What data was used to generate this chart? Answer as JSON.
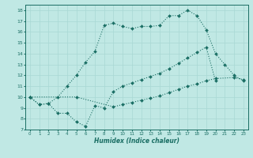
{
  "xlabel": "Humidex (Indice chaleur)",
  "bg_color": "#c0e8e4",
  "line_color": "#1a6e64",
  "grid_color": "#a8d8d4",
  "xlim": [
    -0.5,
    23.5
  ],
  "ylim": [
    7,
    18.5
  ],
  "yticks": [
    7,
    8,
    9,
    10,
    11,
    12,
    13,
    14,
    15,
    16,
    17,
    18
  ],
  "xticks": [
    0,
    1,
    2,
    3,
    4,
    5,
    6,
    7,
    8,
    9,
    10,
    11,
    12,
    13,
    14,
    15,
    16,
    17,
    18,
    19,
    20,
    21,
    22,
    23
  ],
  "line1_x": [
    0,
    1,
    2,
    3,
    4,
    5,
    6,
    7,
    8,
    9,
    10,
    11,
    12,
    13,
    14,
    15,
    16,
    17,
    18,
    19,
    20,
    21,
    22,
    23
  ],
  "line1_y": [
    10.0,
    9.3,
    9.4,
    10.0,
    11.0,
    12.0,
    13.2,
    14.2,
    16.6,
    16.8,
    16.5,
    16.3,
    16.5,
    16.5,
    16.6,
    17.5,
    17.5,
    18.0,
    17.5,
    16.2,
    14.0,
    13.0,
    12.0,
    11.5
  ],
  "line2_x": [
    0,
    1,
    2,
    3,
    4,
    5,
    6,
    7,
    8,
    9,
    10,
    11,
    12,
    13,
    14,
    15,
    16,
    17,
    18,
    19,
    20
  ],
  "line2_y": [
    10.0,
    9.3,
    9.4,
    8.5,
    8.5,
    7.7,
    7.3,
    9.2,
    9.0,
    10.5,
    11.0,
    11.3,
    11.6,
    11.9,
    12.2,
    12.6,
    13.1,
    13.6,
    14.1,
    14.6,
    11.5
  ],
  "line3_x": [
    0,
    5,
    9,
    10,
    11,
    12,
    13,
    14,
    15,
    16,
    17,
    18,
    19,
    20,
    22,
    23
  ],
  "line3_y": [
    10.0,
    10.0,
    9.1,
    9.3,
    9.5,
    9.7,
    9.9,
    10.1,
    10.4,
    10.7,
    11.0,
    11.2,
    11.5,
    11.7,
    11.8,
    11.6
  ]
}
